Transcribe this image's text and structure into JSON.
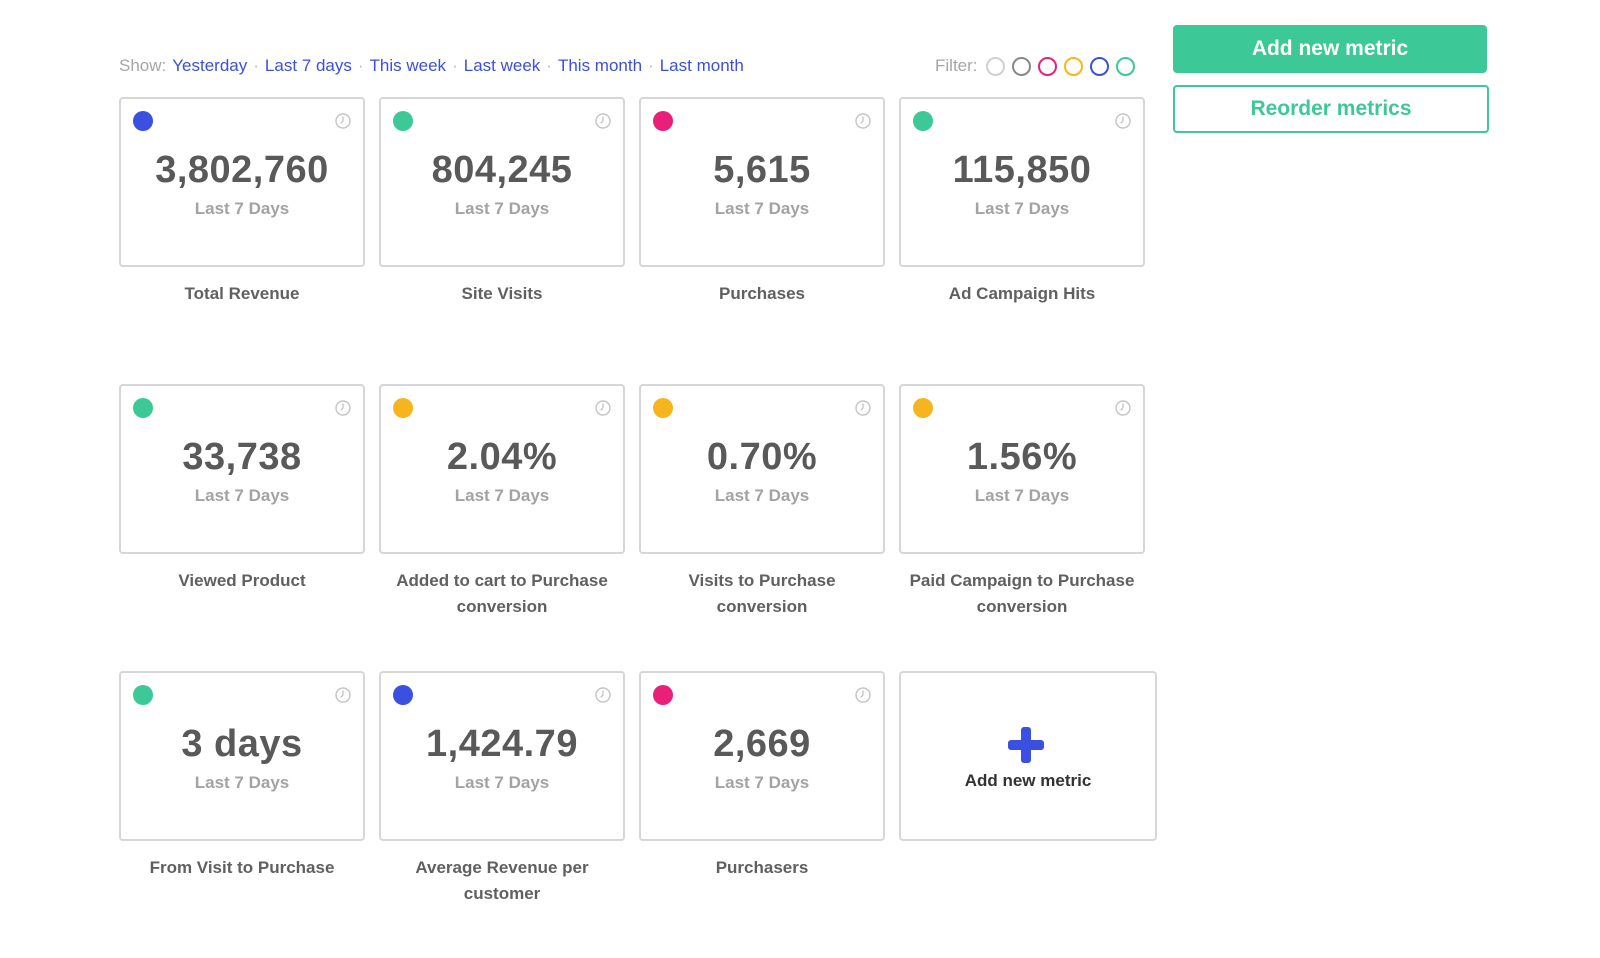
{
  "header": {
    "show_label": "Show:",
    "ranges": [
      "Yesterday",
      "Last 7 days",
      "This week",
      "Last week",
      "This month",
      "Last month"
    ],
    "separator": "·",
    "filter_label": "Filter:",
    "filter_colors": [
      "#d0d0d0",
      "#888888",
      "#e8207a",
      "#f6b51e",
      "#3b4fe0",
      "#3cc997"
    ]
  },
  "actions": {
    "add_metric_label": "Add new metric",
    "reorder_label": "Reorder metrics"
  },
  "colors": {
    "blue": "#3b4fe0",
    "green": "#3cc997",
    "pink": "#e8207a",
    "yellow": "#f6b51e"
  },
  "metrics": [
    {
      "value": "3,802,760",
      "period": "Last 7 Days",
      "label": "Total Revenue",
      "color": "#3b4fe0"
    },
    {
      "value": "804,245",
      "period": "Last 7 Days",
      "label": "Site Visits",
      "color": "#3cc997"
    },
    {
      "value": "5,615",
      "period": "Last 7 Days",
      "label": "Purchases",
      "color": "#e8207a"
    },
    {
      "value": "115,850",
      "period": "Last 7 Days",
      "label": "Ad Campaign Hits",
      "color": "#3cc997"
    },
    {
      "value": "33,738",
      "period": "Last 7 Days",
      "label": "Viewed Product",
      "color": "#3cc997"
    },
    {
      "value": "2.04%",
      "period": "Last 7 Days",
      "label": "Added to cart to Purchase conversion",
      "color": "#f6b51e"
    },
    {
      "value": "0.70%",
      "period": "Last 7 Days",
      "label": "Visits to Purchase conversion",
      "color": "#f6b51e"
    },
    {
      "value": "1.56%",
      "period": "Last 7 Days",
      "label": "Paid Campaign to Purchase conversion",
      "color": "#f6b51e"
    },
    {
      "value": "3 days",
      "period": "Last 7 Days",
      "label": "From Visit to Purchase",
      "color": "#3cc997"
    },
    {
      "value": "1,424.79",
      "period": "Last 7 Days",
      "label": "Average Revenue per customer",
      "color": "#3b4fe0"
    },
    {
      "value": "2,669",
      "period": "Last 7 Days",
      "label": "Purchasers",
      "color": "#e8207a"
    }
  ],
  "add_card": {
    "label": "Add new metric",
    "icon": "plus-icon",
    "color": "#3b4fe0"
  },
  "icons": {
    "card_corner": "clock-icon"
  }
}
